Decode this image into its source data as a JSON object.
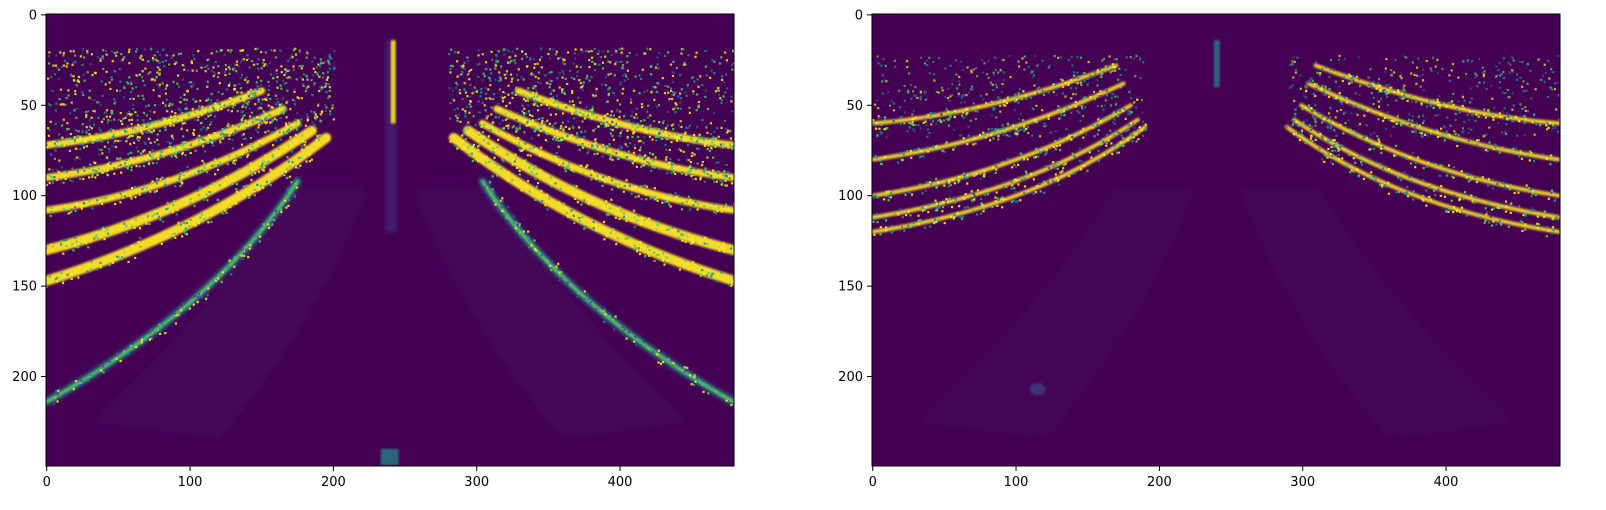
{
  "figure": {
    "background": "#ffffff",
    "colormap": "viridis"
  },
  "chart_data": [
    {
      "type": "heatmap",
      "title": "",
      "xlabel": "",
      "ylabel": "",
      "xlim": [
        0,
        479
      ],
      "ylim": [
        249,
        0
      ],
      "image_size": {
        "width": 480,
        "height": 250
      },
      "value_range": [
        0,
        1
      ],
      "x_ticks": [
        0,
        100,
        200,
        300,
        400
      ],
      "y_ticks": [
        0,
        50,
        100,
        150,
        200
      ],
      "grid": false,
      "content": "strong lane-line response: bright curved bands sweeping from upper left and upper right, a central vertical streak near x=240, and two long diagonal lane curves reaching the bottom corners"
    },
    {
      "type": "heatmap",
      "title": "",
      "xlabel": "",
      "ylabel": "",
      "xlim": [
        0,
        479
      ],
      "ylim": [
        249,
        0
      ],
      "image_size": {
        "width": 480,
        "height": 250
      },
      "value_range": [
        0,
        1
      ],
      "x_ticks": [
        0,
        100,
        200,
        300,
        400
      ],
      "y_ticks": [
        0,
        50,
        100,
        150,
        200
      ],
      "grid": false,
      "content": "weaker predicted response: thinner curved bands at upper left and upper right, faint central streak near x=240, mostly dark lower half"
    }
  ]
}
